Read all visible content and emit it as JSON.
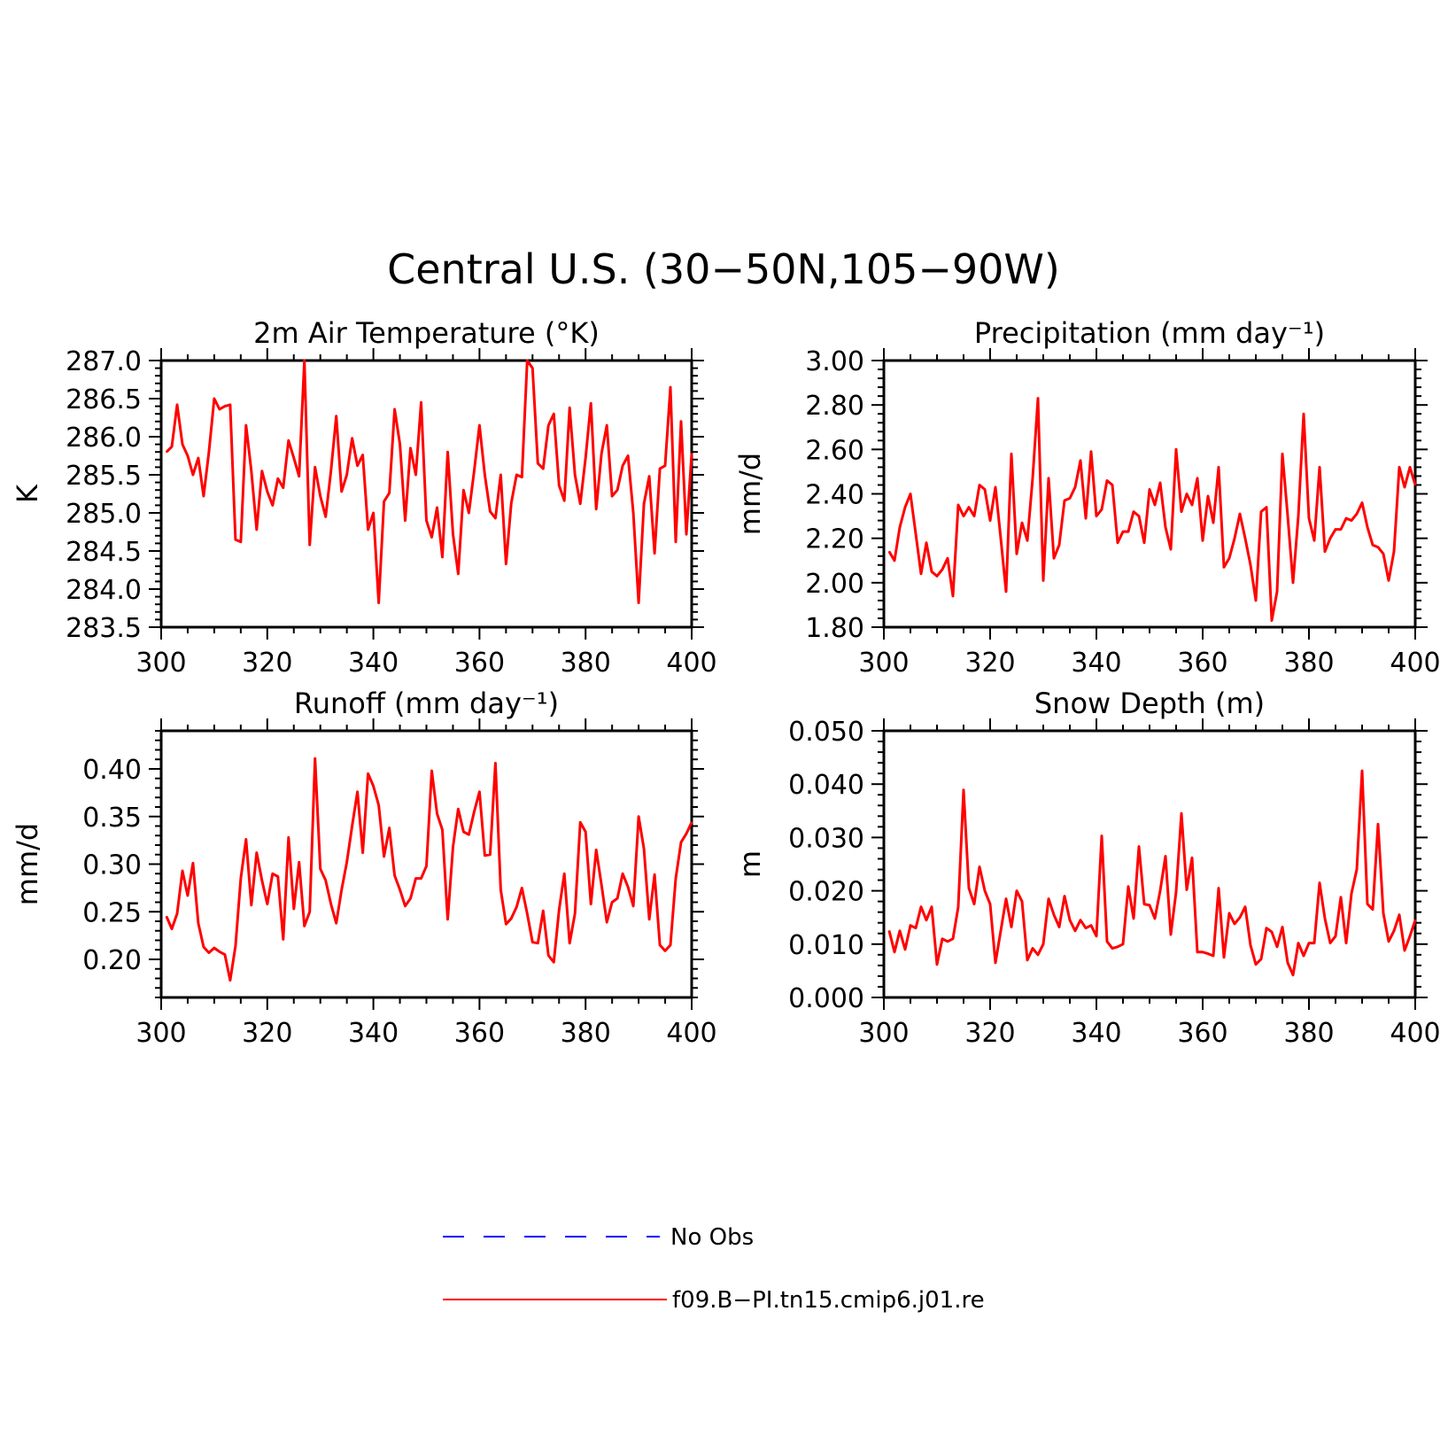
{
  "figure_title": "Central U.S. (30−50N,105−90W)",
  "legend": {
    "items": [
      {
        "label": "No Obs",
        "color": "#0000ff",
        "style": "dashed"
      },
      {
        "label": "f09.B−PI.tn15.cmip6.j01.re",
        "color": "#ff0000",
        "style": "solid"
      }
    ]
  },
  "chart_data": [
    {
      "type": "line",
      "title": "2m Air Temperature (°K)",
      "ylabel": "K",
      "xlim": [
        300,
        400
      ],
      "ylim": [
        283.5,
        287.0
      ],
      "xticks": [
        300,
        320,
        340,
        360,
        380,
        400
      ],
      "yticks": [
        283.5,
        284.0,
        284.5,
        285.0,
        285.5,
        286.0,
        286.5,
        287.0
      ],
      "ytick_decimals": 1,
      "series": [
        {
          "name": "f09.B−PI.tn15.cmip6.j01.re",
          "color": "#ff0000",
          "x_start": 301,
          "values": [
            285.8,
            285.87,
            286.42,
            285.9,
            285.75,
            285.5,
            285.72,
            285.22,
            285.8,
            286.5,
            286.36,
            286.4,
            286.42,
            284.65,
            284.62,
            286.15,
            285.55,
            284.78,
            285.55,
            285.28,
            285.1,
            285.45,
            285.33,
            285.95,
            285.72,
            285.48,
            287.0,
            284.58,
            285.6,
            285.22,
            284.95,
            285.55,
            286.27,
            285.28,
            285.5,
            285.98,
            285.62,
            285.76,
            284.78,
            285.0,
            283.82,
            285.15,
            285.26,
            286.36,
            285.9,
            284.9,
            285.85,
            285.5,
            286.45,
            284.9,
            284.68,
            285.07,
            284.42,
            285.8,
            284.72,
            284.2,
            285.3,
            285.0,
            285.55,
            286.15,
            285.5,
            285.02,
            284.93,
            285.5,
            284.33,
            285.13,
            285.5,
            285.47,
            287.0,
            286.9,
            285.65,
            285.58,
            286.15,
            286.3,
            285.36,
            285.16,
            286.38,
            285.5,
            285.12,
            285.72,
            286.44,
            285.05,
            285.78,
            286.15,
            285.22,
            285.3,
            285.62,
            285.75,
            285.0,
            283.82,
            285.12,
            285.48,
            284.47,
            285.58,
            285.62,
            286.65,
            284.62,
            286.2,
            284.72,
            285.78
          ]
        }
      ]
    },
    {
      "type": "line",
      "title": "Precipitation (mm day⁻¹)",
      "ylabel": "mm/d",
      "xlim": [
        300,
        400
      ],
      "ylim": [
        1.8,
        3.0
      ],
      "xticks": [
        300,
        320,
        340,
        360,
        380,
        400
      ],
      "yticks": [
        1.8,
        2.0,
        2.2,
        2.4,
        2.6,
        2.8,
        3.0
      ],
      "ytick_decimals": 2,
      "series": [
        {
          "name": "f09.B−PI.tn15.cmip6.j01.re",
          "color": "#ff0000",
          "x_start": 301,
          "values": [
            2.14,
            2.1,
            2.25,
            2.34,
            2.4,
            2.22,
            2.04,
            2.18,
            2.05,
            2.03,
            2.06,
            2.11,
            1.94,
            2.35,
            2.3,
            2.34,
            2.3,
            2.44,
            2.42,
            2.28,
            2.43,
            2.2,
            1.96,
            2.58,
            2.13,
            2.27,
            2.19,
            2.47,
            2.83,
            2.01,
            2.47,
            2.11,
            2.17,
            2.37,
            2.38,
            2.43,
            2.55,
            2.29,
            2.59,
            2.3,
            2.33,
            2.46,
            2.44,
            2.18,
            2.23,
            2.23,
            2.32,
            2.3,
            2.18,
            2.42,
            2.35,
            2.45,
            2.25,
            2.15,
            2.6,
            2.32,
            2.4,
            2.35,
            2.47,
            2.19,
            2.39,
            2.27,
            2.52,
            2.07,
            2.11,
            2.2,
            2.31,
            2.2,
            2.08,
            1.92,
            2.32,
            2.34,
            1.83,
            1.96,
            2.58,
            2.3,
            2.0,
            2.3,
            2.76,
            2.29,
            2.19,
            2.52,
            2.14,
            2.2,
            2.24,
            2.24,
            2.29,
            2.28,
            2.31,
            2.36,
            2.25,
            2.17,
            2.16,
            2.13,
            2.01,
            2.14,
            2.52,
            2.43,
            2.52,
            2.44
          ]
        }
      ]
    },
    {
      "type": "line",
      "title": "Runoff (mm day⁻¹)",
      "ylabel": "mm/d",
      "xlim": [
        300,
        400
      ],
      "ylim": [
        0.16,
        0.44
      ],
      "xticks": [
        300,
        320,
        340,
        360,
        380,
        400
      ],
      "yticks": [
        0.2,
        0.25,
        0.3,
        0.35,
        0.4
      ],
      "ytick_decimals": 2,
      "series": [
        {
          "name": "f09.B−PI.tn15.cmip6.j01.re",
          "color": "#ff0000",
          "x_start": 301,
          "values": [
            0.245,
            0.232,
            0.248,
            0.293,
            0.267,
            0.301,
            0.238,
            0.213,
            0.207,
            0.212,
            0.208,
            0.205,
            0.178,
            0.214,
            0.285,
            0.326,
            0.257,
            0.312,
            0.283,
            0.258,
            0.29,
            0.287,
            0.221,
            0.328,
            0.253,
            0.302,
            0.235,
            0.25,
            0.411,
            0.295,
            0.283,
            0.258,
            0.238,
            0.273,
            0.302,
            0.34,
            0.376,
            0.312,
            0.395,
            0.382,
            0.362,
            0.308,
            0.338,
            0.288,
            0.273,
            0.256,
            0.264,
            0.285,
            0.285,
            0.298,
            0.398,
            0.353,
            0.336,
            0.242,
            0.318,
            0.358,
            0.334,
            0.331,
            0.355,
            0.376,
            0.309,
            0.31,
            0.406,
            0.273,
            0.237,
            0.243,
            0.255,
            0.275,
            0.248,
            0.218,
            0.217,
            0.251,
            0.204,
            0.197,
            0.252,
            0.29,
            0.217,
            0.248,
            0.344,
            0.334,
            0.258,
            0.315,
            0.278,
            0.239,
            0.26,
            0.264,
            0.29,
            0.276,
            0.256,
            0.35,
            0.316,
            0.242,
            0.289,
            0.215,
            0.209,
            0.215,
            0.285,
            0.323,
            0.332,
            0.344
          ]
        }
      ]
    },
    {
      "type": "line",
      "title": "Snow Depth (m)",
      "ylabel": "m",
      "xlim": [
        300,
        400
      ],
      "ylim": [
        0.0,
        0.05
      ],
      "xticks": [
        300,
        320,
        340,
        360,
        380,
        400
      ],
      "yticks": [
        0.0,
        0.01,
        0.02,
        0.03,
        0.04,
        0.05
      ],
      "ytick_decimals": 3,
      "series": [
        {
          "name": "f09.B−PI.tn15.cmip6.j01.re",
          "color": "#ff0000",
          "x_start": 301,
          "values": [
            0.0125,
            0.0085,
            0.0125,
            0.009,
            0.0135,
            0.013,
            0.017,
            0.0145,
            0.017,
            0.0062,
            0.011,
            0.0105,
            0.011,
            0.017,
            0.0389,
            0.0205,
            0.0175,
            0.0245,
            0.02,
            0.0175,
            0.0065,
            0.0125,
            0.0185,
            0.0132,
            0.02,
            0.018,
            0.007,
            0.0092,
            0.008,
            0.01,
            0.0185,
            0.0155,
            0.0132,
            0.019,
            0.0145,
            0.0125,
            0.0145,
            0.013,
            0.0135,
            0.0115,
            0.0303,
            0.0105,
            0.0092,
            0.0095,
            0.01,
            0.0208,
            0.0148,
            0.0283,
            0.0175,
            0.0173,
            0.0148,
            0.02,
            0.0265,
            0.0118,
            0.0198,
            0.0345,
            0.0202,
            0.0262,
            0.0085,
            0.0085,
            0.0082,
            0.0078,
            0.0205,
            0.0075,
            0.0158,
            0.0138,
            0.015,
            0.017,
            0.0098,
            0.0062,
            0.0072,
            0.013,
            0.0123,
            0.0095,
            0.0132,
            0.0065,
            0.0042,
            0.0102,
            0.0078,
            0.0102,
            0.0102,
            0.0215,
            0.0148,
            0.0102,
            0.0115,
            0.0188,
            0.0102,
            0.0195,
            0.024,
            0.0425,
            0.0175,
            0.0165,
            0.0325,
            0.0158,
            0.0105,
            0.0125,
            0.0155,
            0.0088,
            0.0115,
            0.0145
          ]
        }
      ]
    }
  ]
}
